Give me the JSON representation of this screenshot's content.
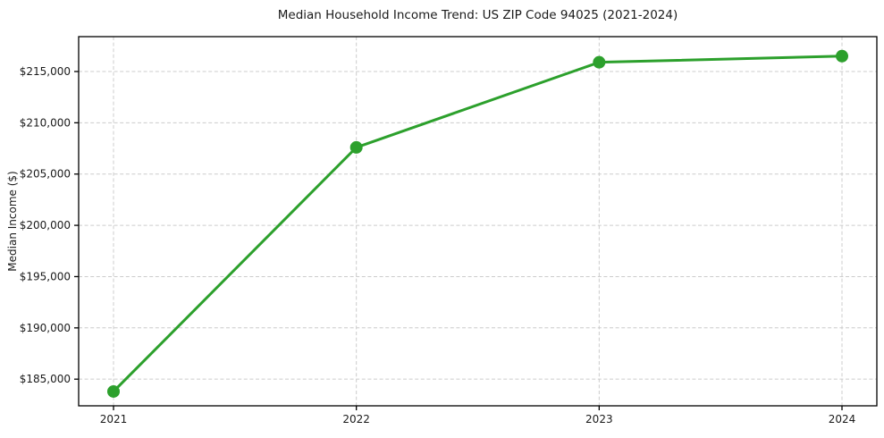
{
  "chart_data": {
    "type": "line",
    "title": "Median Household Income Trend: US ZIP Code 94025 (2021-2024)",
    "xlabel": "",
    "ylabel": "Median Income ($)",
    "categories": [
      "2021",
      "2022",
      "2023",
      "2024"
    ],
    "values": [
      183800,
      207600,
      215900,
      216500
    ],
    "ylim": [
      182400,
      218400
    ],
    "yticks": [
      185000,
      190000,
      195000,
      200000,
      205000,
      210000,
      215000
    ],
    "ytick_labels": [
      "$185,000",
      "$190,000",
      "$195,000",
      "$200,000",
      "$205,000",
      "$210,000",
      "$215,000"
    ],
    "grid": "both, dashed",
    "legend_position": "none",
    "colors": {
      "line": "#2ca02c",
      "marker": "#2ca02c",
      "grid": "#cccccc",
      "spine": "#000000",
      "background": "#ffffff",
      "text": "#1a1a1a"
    }
  }
}
